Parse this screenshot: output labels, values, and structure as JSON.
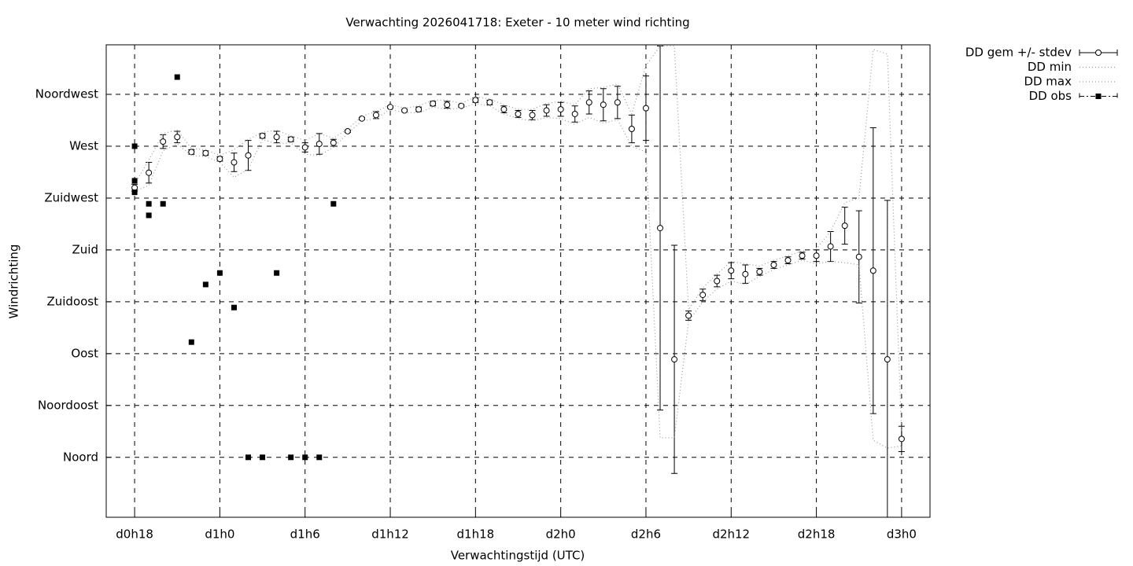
{
  "chart_data": {
    "type": "errorbar-line",
    "title": "Verwachting 2026041718: Exeter - 10 meter wind richting",
    "xlabel": "Verwachtingstijd (UTC)",
    "ylabel": "Windrichting",
    "xlim": [
      16,
      74
    ],
    "ylim": [
      -52,
      358
    ],
    "grid": true,
    "legend": "outside-top-right",
    "xticks": [
      {
        "value": 18,
        "label": "d0h18"
      },
      {
        "value": 24,
        "label": "d1h0"
      },
      {
        "value": 30,
        "label": "d1h6"
      },
      {
        "value": 36,
        "label": "d1h12"
      },
      {
        "value": 42,
        "label": "d1h18"
      },
      {
        "value": 48,
        "label": "d2h0"
      },
      {
        "value": 54,
        "label": "d2h6"
      },
      {
        "value": 60,
        "label": "d2h12"
      },
      {
        "value": 66,
        "label": "d2h18"
      },
      {
        "value": 72,
        "label": "d3h0"
      }
    ],
    "yticks": [
      {
        "value": 0,
        "label": "Noord"
      },
      {
        "value": 45,
        "label": "Noordoost"
      },
      {
        "value": 90,
        "label": "Oost"
      },
      {
        "value": 135,
        "label": "Zuidoost"
      },
      {
        "value": 180,
        "label": "Zuid"
      },
      {
        "value": 225,
        "label": "Zuidwest"
      },
      {
        "value": 270,
        "label": "West"
      },
      {
        "value": 315,
        "label": "Noordwest"
      }
    ],
    "x": [
      18,
      19,
      20,
      21,
      22,
      23,
      24,
      25,
      26,
      27,
      28,
      29,
      30,
      31,
      32,
      33,
      34,
      35,
      36,
      37,
      38,
      39,
      40,
      41,
      42,
      43,
      44,
      45,
      46,
      47,
      48,
      49,
      50,
      51,
      52,
      53,
      54,
      55,
      56,
      57,
      58,
      59,
      60,
      61,
      62,
      63,
      64,
      65,
      66,
      67,
      68,
      69,
      70,
      71,
      72
    ],
    "series": [
      {
        "name": "DD gem +/- stdev",
        "style": "errorbars",
        "color": "#000000",
        "values": [
          234,
          247,
          274,
          278,
          265,
          264,
          259,
          256,
          262,
          279,
          278,
          276,
          269,
          272,
          273,
          283,
          294,
          297,
          304,
          301,
          302,
          307,
          306,
          305,
          310,
          308,
          302,
          298,
          297,
          301,
          302,
          298,
          308,
          306,
          308,
          285,
          303,
          199,
          85,
          123,
          141,
          153,
          162,
          159,
          161,
          167,
          171,
          175,
          175,
          183,
          201,
          174,
          162,
          85,
          16
        ],
        "errors": [
          3,
          9,
          6,
          5,
          2,
          2,
          2,
          8,
          13,
          2,
          5,
          2,
          4,
          9,
          3,
          1,
          1,
          3,
          1,
          1,
          2,
          2,
          3,
          1,
          2,
          2,
          3,
          3,
          4,
          5,
          6,
          7,
          10,
          14,
          14,
          12,
          28,
          158,
          99,
          4,
          5,
          5,
          7,
          8,
          3,
          3,
          3,
          3,
          5,
          13,
          16,
          40,
          124,
          138,
          11
        ]
      },
      {
        "name": "DD min",
        "style": "dotted",
        "color": "#999999",
        "values": [
          231,
          236,
          266,
          272,
          262,
          261,
          256,
          243,
          250,
          276,
          272,
          273,
          263,
          262,
          269,
          281,
          292,
          294,
          302,
          299,
          299,
          304,
          302,
          303,
          307,
          305,
          298,
          294,
          292,
          295,
          294,
          289,
          295,
          290,
          293,
          270,
          265,
          17,
          17,
          118,
          135,
          146,
          153,
          150,
          157,
          163,
          167,
          171,
          168,
          170,
          169,
          167,
          15,
          8,
          10
        ]
      },
      {
        "name": "DD max",
        "style": "dotted",
        "color": "#999999",
        "values": [
          237,
          258,
          281,
          284,
          268,
          267,
          262,
          267,
          276,
          282,
          284,
          279,
          275,
          281,
          277,
          285,
          296,
          300,
          306,
          303,
          305,
          310,
          310,
          307,
          313,
          311,
          306,
          302,
          302,
          307,
          309,
          306,
          320,
          321,
          324,
          298,
          340,
          357,
          357,
          128,
          147,
          159,
          170,
          168,
          166,
          171,
          175,
          179,
          181,
          196,
          221,
          225,
          354,
          350,
          22
        ]
      },
      {
        "name": "DD obs",
        "style": "points",
        "color": "#000000",
        "x": [
          18,
          18,
          18,
          19,
          19,
          20,
          21,
          22,
          23,
          24,
          25,
          26,
          27,
          28,
          29,
          30,
          31,
          32
        ],
        "values": [
          270,
          240,
          230,
          220,
          210,
          220,
          330,
          100,
          150,
          160,
          130,
          0,
          0,
          160,
          0,
          0,
          0,
          220
        ]
      }
    ]
  }
}
